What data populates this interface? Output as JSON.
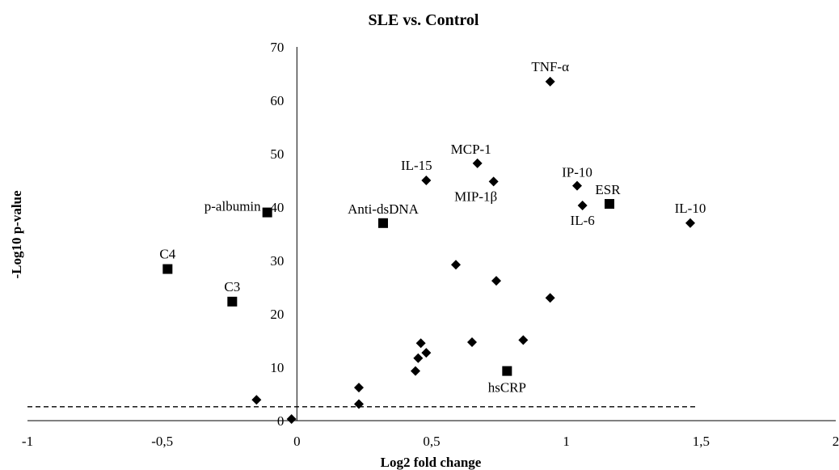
{
  "chart_data": {
    "type": "scatter",
    "title": "SLE vs. Control",
    "xlabel": "Log2 fold change",
    "ylabel": "-Log10 p-value",
    "xlim": [
      -1,
      2
    ],
    "ylim": [
      0,
      70
    ],
    "x_ticks": [
      -1,
      -0.5,
      0,
      0.5,
      1,
      1.5,
      2
    ],
    "x_tick_labels": [
      "-1",
      "-0,5",
      "0",
      "0,5",
      "1",
      "1,5",
      "2"
    ],
    "y_ticks": [
      0,
      10,
      20,
      30,
      40,
      50,
      60,
      70
    ],
    "y_tick_labels": [
      "0",
      "10",
      "20",
      "30",
      "40",
      "50",
      "60",
      "70"
    ],
    "threshold_y": 2.6,
    "threshold_x_range": [
      -1,
      1.48
    ],
    "series": [
      {
        "marker": "diamond",
        "points": [
          {
            "x": 0.94,
            "y": 63.5,
            "label": "TNF-α"
          },
          {
            "x": 0.67,
            "y": 48.2,
            "label": "MCP-1"
          },
          {
            "x": 0.48,
            "y": 45.0,
            "label": "IL-15"
          },
          {
            "x": 0.73,
            "y": 44.8,
            "label": "MIP-1β"
          },
          {
            "x": 1.04,
            "y": 44.0,
            "label": "IP-10"
          },
          {
            "x": 1.06,
            "y": 40.3,
            "label": "IL-6"
          },
          {
            "x": 1.46,
            "y": 37.0,
            "label": "IL-10"
          },
          {
            "x": 0.59,
            "y": 29.2,
            "label": ""
          },
          {
            "x": 0.74,
            "y": 26.2,
            "label": ""
          },
          {
            "x": 0.94,
            "y": 23.0,
            "label": ""
          },
          {
            "x": 0.84,
            "y": 15.1,
            "label": ""
          },
          {
            "x": 0.65,
            "y": 14.7,
            "label": ""
          },
          {
            "x": 0.46,
            "y": 14.5,
            "label": ""
          },
          {
            "x": 0.48,
            "y": 12.7,
            "label": ""
          },
          {
            "x": 0.45,
            "y": 11.7,
            "label": ""
          },
          {
            "x": 0.44,
            "y": 9.3,
            "label": ""
          },
          {
            "x": 0.23,
            "y": 6.2,
            "label": ""
          },
          {
            "x": 0.23,
            "y": 3.1,
            "label": ""
          },
          {
            "x": -0.15,
            "y": 3.9,
            "label": ""
          },
          {
            "x": -0.02,
            "y": 0.3,
            "label": ""
          }
        ]
      },
      {
        "marker": "square",
        "points": [
          {
            "x": 1.16,
            "y": 40.6,
            "label": "ESR"
          },
          {
            "x": -0.11,
            "y": 39.0,
            "label": "p-albumin"
          },
          {
            "x": 0.32,
            "y": 37.0,
            "label": "Anti-dsDNA"
          },
          {
            "x": -0.48,
            "y": 28.4,
            "label": "C4"
          },
          {
            "x": -0.24,
            "y": 22.3,
            "label": "C3"
          },
          {
            "x": 0.78,
            "y": 9.3,
            "label": "hsCRP"
          }
        ]
      }
    ]
  }
}
